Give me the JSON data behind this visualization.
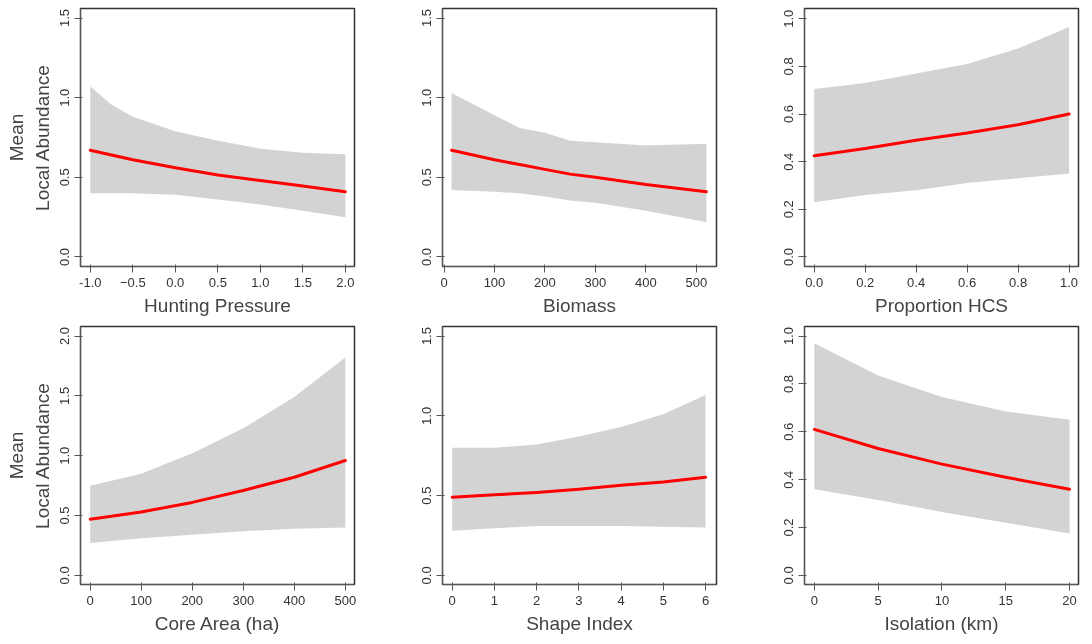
{
  "chart_data": [
    {
      "type": "line",
      "xlabel": "Hunting Pressure",
      "ylabel": "Mean\nLocal Abundance",
      "xlim": [
        -1.115,
        2.107
      ],
      "ylim": [
        -0.06,
        1.56
      ],
      "xticks": [
        {
          "value": -1,
          "label": "-1.0"
        },
        -0.5,
        {
          "value": 0,
          "label": "0.0"
        },
        0.5,
        {
          "value": 1,
          "label": "1.0"
        },
        1.5,
        {
          "value": 2,
          "label": "2.0"
        }
      ],
      "yticks": [
        {
          "value": 0,
          "label": "0.0"
        },
        0.5,
        {
          "value": 1,
          "label": "1.0"
        },
        1.5
      ],
      "grid": false,
      "series": [
        {
          "color": "#ff0000",
          "x": [
            -1,
            -0.75,
            -0.5,
            0,
            0.5,
            1,
            1.5,
            2
          ],
          "values": [
            0.67,
            0.64,
            0.61,
            0.56,
            0.515,
            0.48,
            0.445,
            0.41
          ],
          "lower": [
            0.4,
            0.4,
            0.4,
            0.39,
            0.36,
            0.33,
            0.29,
            0.25
          ],
          "upper": [
            1.07,
            0.955,
            0.88,
            0.79,
            0.73,
            0.68,
            0.655,
            0.645
          ]
        }
      ]
    },
    {
      "type": "line",
      "xlabel": "Biomass",
      "xlim": [
        -3,
        540
      ],
      "ylim": [
        -0.06,
        1.56
      ],
      "xticks": [
        0,
        100,
        200,
        300,
        400,
        500
      ],
      "yticks": [
        {
          "value": 0,
          "label": "0.0"
        },
        0.5,
        {
          "value": 1,
          "label": "1.0"
        },
        1.5
      ],
      "grid": false,
      "series": [
        {
          "color": "#ff0000",
          "x": [
            15,
            100,
            150,
            200,
            250,
            300,
            400,
            520
          ],
          "values": [
            0.67,
            0.61,
            0.58,
            0.55,
            0.52,
            0.5,
            0.455,
            0.41
          ],
          "lower": [
            0.42,
            0.41,
            0.4,
            0.38,
            0.355,
            0.34,
            0.29,
            0.22
          ],
          "upper": [
            1.03,
            0.89,
            0.81,
            0.78,
            0.73,
            0.72,
            0.7,
            0.71
          ]
        }
      ]
    },
    {
      "type": "line",
      "xlabel": "Proportion HCS",
      "xlim": [
        -0.038,
        1.037
      ],
      "ylim": [
        -0.04,
        1.043
      ],
      "xticks": [
        {
          "value": 0,
          "label": "0.0"
        },
        0.2,
        0.4,
        0.6,
        0.8,
        {
          "value": 1,
          "label": "1.0"
        }
      ],
      "yticks": [
        {
          "value": 0,
          "label": "0.0"
        },
        0.2,
        0.4,
        0.6,
        0.8,
        {
          "value": 1,
          "label": "1.0"
        }
      ],
      "grid": false,
      "series": [
        {
          "color": "#ff0000",
          "x": [
            0,
            0.2,
            0.4,
            0.6,
            0.8,
            1.0
          ],
          "values": [
            0.425,
            0.455,
            0.49,
            0.52,
            0.555,
            0.6
          ],
          "lower": [
            0.23,
            0.26,
            0.28,
            0.31,
            0.33,
            0.35
          ],
          "upper": [
            0.705,
            0.73,
            0.77,
            0.81,
            0.875,
            0.965
          ]
        }
      ]
    },
    {
      "type": "line",
      "xlabel": "Core Area (ha)",
      "ylabel": "Mean\nLocal Abundance",
      "xlim": [
        -19,
        518
      ],
      "ylim": [
        -0.076,
        2.08
      ],
      "xticks": [
        0,
        100,
        200,
        300,
        400,
        500
      ],
      "yticks": [
        {
          "value": 0,
          "label": "0.0"
        },
        0.5,
        {
          "value": 1,
          "label": "1.0"
        },
        1.5,
        {
          "value": 2,
          "label": "2.0"
        }
      ],
      "grid": false,
      "series": [
        {
          "color": "#ff0000",
          "x": [
            0,
            100,
            200,
            300,
            400,
            500
          ],
          "values": [
            0.47,
            0.53,
            0.61,
            0.71,
            0.82,
            0.96
          ],
          "lower": [
            0.27,
            0.31,
            0.34,
            0.37,
            0.39,
            0.4
          ],
          "upper": [
            0.75,
            0.85,
            1.02,
            1.23,
            1.49,
            1.82
          ]
        }
      ]
    },
    {
      "type": "line",
      "xlabel": "Shape Index",
      "xlim": [
        -0.23,
        6.26
      ],
      "ylim": [
        -0.057,
        1.56
      ],
      "xticks": [
        0,
        1,
        2,
        3,
        4,
        5,
        6
      ],
      "yticks": [
        {
          "value": 0,
          "label": "0.0"
        },
        0.5,
        {
          "value": 1,
          "label": "1.0"
        },
        1.5
      ],
      "grid": false,
      "series": [
        {
          "color": "#ff0000",
          "x": [
            0,
            1,
            2,
            3,
            4,
            5,
            6
          ],
          "values": [
            0.49,
            0.505,
            0.52,
            0.54,
            0.565,
            0.585,
            0.615
          ],
          "lower": [
            0.28,
            0.295,
            0.31,
            0.31,
            0.31,
            0.305,
            0.3
          ],
          "upper": [
            0.8,
            0.8,
            0.82,
            0.87,
            0.93,
            1.01,
            1.13
          ]
        }
      ]
    },
    {
      "type": "line",
      "xlabel": "Isolation (km)",
      "xlim": [
        -0.77,
        20.7
      ],
      "ylim": [
        -0.038,
        1.04
      ],
      "xticks": [
        0,
        5,
        10,
        15,
        20
      ],
      "yticks": [
        {
          "value": 0,
          "label": "0.0"
        },
        0.2,
        0.4,
        0.6,
        0.8,
        {
          "value": 1,
          "label": "1.0"
        }
      ],
      "grid": false,
      "series": [
        {
          "color": "#ff0000",
          "x": [
            0,
            5,
            10,
            15,
            20
          ],
          "values": [
            0.61,
            0.53,
            0.465,
            0.41,
            0.36
          ],
          "lower": [
            0.36,
            0.315,
            0.265,
            0.22,
            0.175
          ],
          "upper": [
            0.97,
            0.835,
            0.745,
            0.685,
            0.65
          ]
        }
      ]
    }
  ]
}
